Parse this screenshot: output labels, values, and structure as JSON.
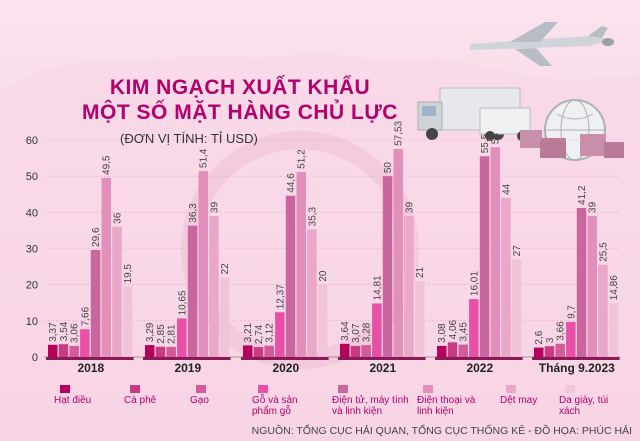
{
  "title_line1": "KIM NGẠCH XUẤT KHẨU",
  "title_line2": "MỘT SỐ MẶT HÀNG CHỦ LỰC",
  "unit_label": "(ĐƠN VỊ TÍNH: TỈ USD)",
  "source": "NGUỒN: TỔNG CỤC HẢI QUAN, TỔNG CỤC THỐNG KÊ - ĐỒ HỌA: PHÚC HẢI",
  "colors": [
    "#b5005c",
    "#c93a84",
    "#d45b98",
    "#e84fa6",
    "#c9669f",
    "#e290bb",
    "#eaa7c9",
    "#f2c4d9"
  ],
  "chart_data": {
    "type": "bar",
    "ylim": [
      0,
      60
    ],
    "yticks": [
      0,
      10,
      20,
      30,
      40,
      50,
      60
    ],
    "categories": [
      "2018",
      "2019",
      "2020",
      "2021",
      "2022",
      "Tháng 9.2023"
    ],
    "series": [
      {
        "name": "Hạt điều",
        "values": [
          3.37,
          3.29,
          3.21,
          3.64,
          3.08,
          2.6
        ]
      },
      {
        "name": "Cà phê",
        "values": [
          3.54,
          2.85,
          2.74,
          3.07,
          4.06,
          3
        ]
      },
      {
        "name": "Gạo",
        "values": [
          3.06,
          2.81,
          3.12,
          3.28,
          3.45,
          3.66
        ]
      },
      {
        "name": "Gỗ và sản phẩm gỗ",
        "values": [
          7.66,
          10.65,
          12.37,
          14.81,
          16.01,
          9.7
        ]
      },
      {
        "name": "Điện tử, máy tính và linh kiện",
        "values": [
          29.6,
          36.3,
          44.6,
          50,
          55.5,
          41.2
        ]
      },
      {
        "name": "Điện thoại và linh kiện",
        "values": [
          49.5,
          51.4,
          51.2,
          57.53,
          58,
          39
        ]
      },
      {
        "name": "Dệt may",
        "values": [
          36,
          39,
          35.3,
          39,
          44,
          25.5
        ]
      },
      {
        "name": "Da giày, túi xách",
        "values": [
          19.5,
          22,
          20,
          21,
          27,
          14.86
        ]
      }
    ],
    "labels": [
      [
        "3,37",
        "3,54",
        "3,06",
        "7,66",
        "29,6",
        "49,5",
        "36",
        "19,5"
      ],
      [
        "3,29",
        "2,85",
        "2,81",
        "10,65",
        "36,3",
        "51,4",
        "39",
        "22"
      ],
      [
        "3,21",
        "2,74",
        "3,12",
        "12,37",
        "44,6",
        "51,2",
        "35,3",
        "20"
      ],
      [
        "3,64",
        "3,07",
        "3,28",
        "14,81",
        "50",
        "57,53",
        "39",
        "21"
      ],
      [
        "3,08",
        "4,06",
        "3,45",
        "16,01",
        "55,5",
        "58",
        "44",
        "27"
      ],
      [
        "2,6",
        "3",
        "3,66",
        "9,7",
        "41,2",
        "39",
        "25,5",
        "14,86"
      ]
    ]
  }
}
